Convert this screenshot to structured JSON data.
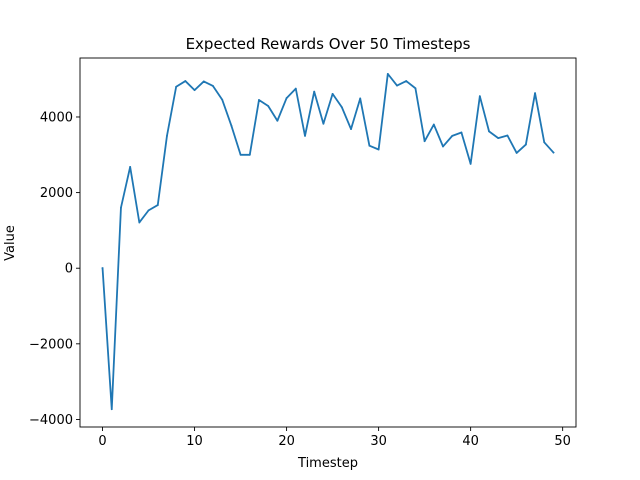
{
  "chart_data": {
    "type": "line",
    "title": "Expected Rewards Over 50 Timesteps",
    "xlabel": "Timestep",
    "ylabel": "Value",
    "xlim": [
      -2.45,
      51.45
    ],
    "ylim": [
      -4200,
      5560
    ],
    "xticks": [
      0,
      10,
      20,
      30,
      40,
      50
    ],
    "yticks": [
      -4000,
      -2000,
      0,
      2000,
      4000
    ],
    "ytick_labels": [
      "−4000",
      "−2000",
      "0",
      "2000",
      "4000"
    ],
    "grid": false,
    "line_color": "#1f77b4",
    "x": [
      0,
      1,
      2,
      3,
      4,
      5,
      6,
      7,
      8,
      9,
      10,
      11,
      12,
      13,
      14,
      15,
      16,
      17,
      18,
      19,
      20,
      21,
      22,
      23,
      24,
      25,
      26,
      27,
      28,
      29,
      30,
      31,
      32,
      33,
      34,
      35,
      36,
      37,
      38,
      39,
      40,
      41,
      42,
      43,
      44,
      45,
      46,
      47,
      48,
      49
    ],
    "values": [
      0,
      -3730,
      1600,
      2680,
      1210,
      1530,
      1670,
      3500,
      4800,
      4950,
      4710,
      4940,
      4820,
      4460,
      3770,
      3000,
      3000,
      4450,
      4290,
      3900,
      4500,
      4750,
      3500,
      4670,
      3820,
      4610,
      4260,
      3680,
      4490,
      3240,
      3140,
      5140,
      4830,
      4950,
      4760,
      3360,
      3800,
      3220,
      3500,
      3590,
      2760,
      4550,
      3620,
      3440,
      3510,
      3050,
      3270,
      4630,
      3330,
      3060
    ]
  }
}
